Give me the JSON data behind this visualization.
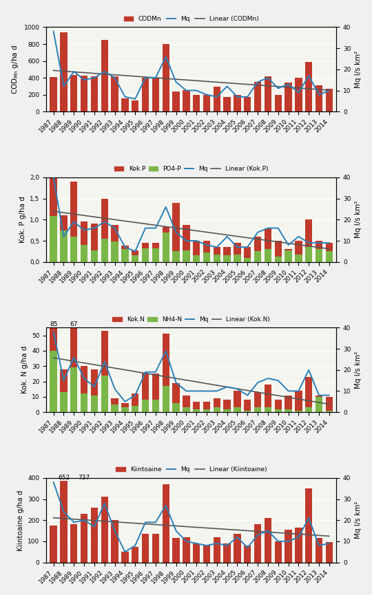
{
  "years": [
    1987,
    1988,
    1989,
    1990,
    1991,
    1992,
    1993,
    1994,
    1995,
    1996,
    1997,
    1998,
    1999,
    2000,
    2001,
    2002,
    2003,
    2004,
    2005,
    2006,
    2007,
    2008,
    2009,
    2010,
    2011,
    2012,
    2013,
    2014
  ],
  "CODMn": [
    410,
    935,
    430,
    425,
    415,
    845,
    415,
    155,
    130,
    405,
    400,
    800,
    235,
    255,
    195,
    200,
    295,
    175,
    200,
    170,
    350,
    420,
    195,
    345,
    400,
    590,
    310,
    270
  ],
  "Mq_COD": [
    38,
    12,
    19,
    15,
    16,
    19,
    16,
    7,
    6,
    16,
    16,
    26,
    14,
    10,
    10,
    8,
    7,
    12,
    7,
    7,
    14,
    16,
    11,
    13,
    9,
    17,
    8,
    10
  ],
  "KokP": [
    2.05,
    1.1,
    1.9,
    0.95,
    0.9,
    1.5,
    0.87,
    0.38,
    0.28,
    0.45,
    0.45,
    0.83,
    1.4,
    0.87,
    0.5,
    0.5,
    0.35,
    0.35,
    0.45,
    0.35,
    0.6,
    0.8,
    0.5,
    0.3,
    0.5,
    1.0,
    0.5,
    0.45
  ],
  "PO4P": [
    1.08,
    0.75,
    0.6,
    0.4,
    0.27,
    0.55,
    0.48,
    0.3,
    0.15,
    0.32,
    0.32,
    0.7,
    0.25,
    0.27,
    0.15,
    0.22,
    0.17,
    0.15,
    0.17,
    0.1,
    0.25,
    0.3,
    0.13,
    0.27,
    0.18,
    0.35,
    0.3,
    0.25
  ],
  "Mq_P": [
    40,
    12,
    19,
    15,
    16,
    19,
    16,
    7,
    5,
    16,
    16,
    26,
    14,
    10,
    10,
    8,
    7,
    12,
    7,
    7,
    14,
    16,
    16,
    8,
    12,
    9,
    9,
    9
  ],
  "KokN": [
    55,
    28,
    55,
    30,
    28,
    53,
    9,
    6,
    12,
    25,
    25,
    51,
    19,
    11,
    7,
    7,
    9,
    8,
    14,
    8,
    13,
    18,
    8,
    11,
    14,
    23,
    11,
    10
  ],
  "NH4N": [
    40,
    13,
    29,
    12,
    11,
    24,
    5,
    3,
    4,
    8,
    8,
    17,
    6,
    3,
    2,
    2,
    3,
    2,
    3,
    1,
    3,
    3,
    2,
    2,
    1,
    3,
    10,
    1
  ],
  "Mq_N": [
    38,
    15,
    26,
    16,
    12,
    24,
    11,
    5,
    8,
    19,
    19,
    29,
    14,
    10,
    10,
    10,
    10,
    12,
    11,
    8,
    14,
    16,
    15,
    10,
    10,
    20,
    8,
    8
  ],
  "Kiintoaine": [
    175,
    385,
    180,
    230,
    260,
    310,
    200,
    50,
    75,
    135,
    135,
    370,
    115,
    120,
    90,
    80,
    120,
    90,
    135,
    80,
    180,
    210,
    100,
    155,
    165,
    350,
    115,
    95
  ],
  "Mq_K": [
    38,
    24,
    19,
    20,
    17,
    28,
    15,
    5,
    8,
    19,
    19,
    27,
    15,
    10,
    9,
    8,
    9,
    8,
    12,
    7,
    13,
    15,
    10,
    10,
    12,
    21,
    8,
    9
  ],
  "bar_color_red": "#c0392b",
  "bar_color_green": "#7ab648",
  "line_color_blue": "#2980b9",
  "line_color_grey": "#555555",
  "bg_color": "#f0f0f0",
  "panel_bg": "#f5f5f0"
}
